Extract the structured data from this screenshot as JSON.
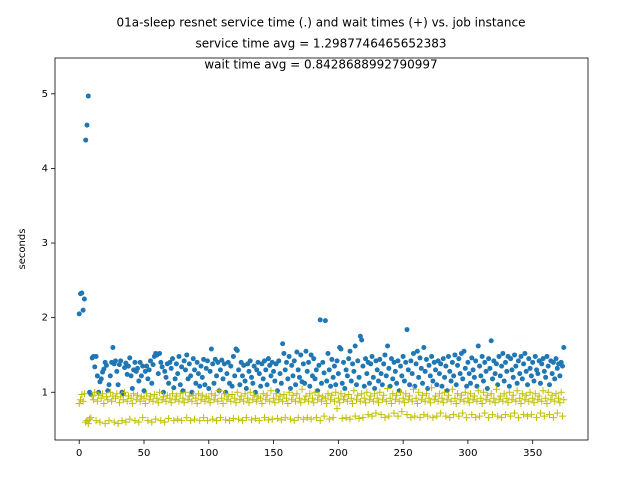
{
  "chart_data": {
    "type": "scatter",
    "title": [
      "01a-sleep resnet service time (.) and wait times (+) vs. job instance",
      "service time avg = 1.2987746465652383",
      "wait time avg = 0.8428688992790997"
    ],
    "ylabel": "seconds",
    "xlim": [
      -18.7,
      392.7
    ],
    "ylim": [
      0.36,
      5.48
    ],
    "xticks": [
      0,
      50,
      100,
      150,
      200,
      250,
      300,
      350
    ],
    "yticks": [
      1,
      2,
      3,
      4,
      5
    ],
    "x": [
      0,
      1,
      2,
      3,
      4,
      5,
      6,
      7,
      8,
      9,
      10,
      11,
      12,
      13,
      14,
      15,
      16,
      17,
      18,
      19,
      20,
      21,
      22,
      23,
      24,
      25,
      26,
      27,
      28,
      29,
      30,
      31,
      32,
      33,
      34,
      35,
      36,
      37,
      38,
      39,
      40,
      41,
      42,
      43,
      44,
      45,
      46,
      47,
      48,
      49,
      50,
      51,
      52,
      53,
      54,
      55,
      56,
      57,
      58,
      59,
      60,
      61,
      62,
      63,
      64,
      65,
      66,
      67,
      68,
      69,
      70,
      71,
      72,
      73,
      74,
      75,
      76,
      77,
      78,
      79,
      80,
      81,
      82,
      83,
      84,
      85,
      86,
      87,
      88,
      89,
      90,
      91,
      92,
      93,
      94,
      95,
      96,
      97,
      98,
      99,
      100,
      101,
      102,
      103,
      104,
      105,
      106,
      107,
      108,
      109,
      110,
      111,
      112,
      113,
      114,
      115,
      116,
      117,
      118,
      119,
      120,
      121,
      122,
      123,
      124,
      125,
      126,
      127,
      128,
      129,
      130,
      131,
      132,
      133,
      134,
      135,
      136,
      137,
      138,
      139,
      140,
      141,
      142,
      143,
      144,
      145,
      146,
      147,
      148,
      149,
      150,
      151,
      152,
      153,
      154,
      155,
      156,
      157,
      158,
      159,
      160,
      161,
      162,
      163,
      164,
      165,
      166,
      167,
      168,
      169,
      170,
      171,
      172,
      173,
      174,
      175,
      176,
      177,
      178,
      179,
      180,
      181,
      182,
      183,
      184,
      185,
      186,
      187,
      188,
      189,
      190,
      191,
      192,
      193,
      194,
      195,
      196,
      197,
      198,
      199,
      200,
      201,
      202,
      203,
      204,
      205,
      206,
      207,
      208,
      209,
      210,
      211,
      212,
      213,
      214,
      215,
      216,
      217,
      218,
      219,
      220,
      221,
      222,
      223,
      224,
      225,
      226,
      227,
      228,
      229,
      230,
      231,
      232,
      233,
      234,
      235,
      236,
      237,
      238,
      239,
      240,
      241,
      242,
      243,
      244,
      245,
      246,
      247,
      248,
      249,
      250,
      251,
      252,
      253,
      254,
      255,
      256,
      257,
      258,
      259,
      260,
      261,
      262,
      263,
      264,
      265,
      266,
      267,
      268,
      269,
      270,
      271,
      272,
      273,
      274,
      275,
      276,
      277,
      278,
      279,
      280,
      281,
      282,
      283,
      284,
      285,
      286,
      287,
      288,
      289,
      290,
      291,
      292,
      293,
      294,
      295,
      296,
      297,
      298,
      299,
      300,
      301,
      302,
      303,
      304,
      305,
      306,
      307,
      308,
      309,
      310,
      311,
      312,
      313,
      314,
      315,
      316,
      317,
      318,
      319,
      320,
      321,
      322,
      323,
      324,
      325,
      326,
      327,
      328,
      329,
      330,
      331,
      332,
      333,
      334,
      335,
      336,
      337,
      338,
      339,
      340,
      341,
      342,
      343,
      344,
      345,
      346,
      347,
      348,
      349,
      350,
      351,
      352,
      353,
      354,
      355,
      356,
      357,
      358,
      359,
      360,
      361,
      362,
      363,
      364,
      365,
      366,
      367,
      368,
      369,
      370,
      371,
      372,
      373,
      374
    ],
    "series": [
      {
        "color": "#1f77b4",
        "marker": "dot",
        "values": [
          2.05,
          2.32,
          2.33,
          2.1,
          2.25,
          4.38,
          4.58,
          4.97,
          1.0,
          0.97,
          1.46,
          1.48,
          1.34,
          1.48,
          1.22,
          1.0,
          1.14,
          1.18,
          1.27,
          1.31,
          1.4,
          1.36,
          1.02,
          1.1,
          1.22,
          1.4,
          1.6,
          1.38,
          1.42,
          1.28,
          1.1,
          1.37,
          1.42,
          1.0,
          0.98,
          1.33,
          1.39,
          1.24,
          1.35,
          1.46,
          1.22,
          1.05,
          1.3,
          1.4,
          1.28,
          1.32,
          1.15,
          1.4,
          1.22,
          1.35,
          1.02,
          1.28,
          1.35,
          1.18,
          1.3,
          1.42,
          1.12,
          1.37,
          1.48,
          1.52,
          1.5,
          1.25,
          1.52,
          1.4,
          1.34,
          1.0,
          1.28,
          1.2,
          1.38,
          1.12,
          1.4,
          1.32,
          1.45,
          1.06,
          1.18,
          1.38,
          1.25,
          1.48,
          1.1,
          1.34,
          1.02,
          1.42,
          1.3,
          1.5,
          1.18,
          1.38,
          1.22,
          1.0,
          1.45,
          1.3,
          1.12,
          1.4,
          1.25,
          1.08,
          1.35,
          1.2,
          1.44,
          1.1,
          1.32,
          1.42,
          1.05,
          1.28,
          1.58,
          1.38,
          1.12,
          1.44,
          1.22,
          1.4,
          1.02,
          1.3,
          1.43,
          1.18,
          1.38,
          1.0,
          1.25,
          1.4,
          1.12,
          1.35,
          1.08,
          1.48,
          1.22,
          1.58,
          1.56,
          1.3,
          1.1,
          1.4,
          1.22,
          1.36,
          1.15,
          1.05,
          1.38,
          1.28,
          1.42,
          1.2,
          1.12,
          1.35,
          1.0,
          1.3,
          1.4,
          1.25,
          1.08,
          1.38,
          1.18,
          1.42,
          1.3,
          1.1,
          1.45,
          1.36,
          1.22,
          1.4,
          1.28,
          1.15,
          1.38,
          1.02,
          1.42,
          1.25,
          1.12,
          1.65,
          1.52,
          1.3,
          1.4,
          1.18,
          1.48,
          1.05,
          1.36,
          1.22,
          1.42,
          1.1,
          1.54,
          1.3,
          1.2,
          1.5,
          1.14,
          1.38,
          1.12,
          1.55,
          1.28,
          1.4,
          1.08,
          1.5,
          1.22,
          1.45,
          1.18,
          1.3,
          1.02,
          1.36,
          1.97,
          1.12,
          1.4,
          1.26,
          1.96,
          1.15,
          1.52,
          1.3,
          1.08,
          1.44,
          1.2,
          1.35,
          1.1,
          1.42,
          1.25,
          1.6,
          1.58,
          1.12,
          1.4,
          1.05,
          1.3,
          1.22,
          1.45,
          1.55,
          1.15,
          1.38,
          1.28,
          1.62,
          1.1,
          1.42,
          1.2,
          1.75,
          1.7,
          1.35,
          1.08,
          1.45,
          1.25,
          1.4,
          1.12,
          1.38,
          1.48,
          1.2,
          1.05,
          1.42,
          1.3,
          1.15,
          1.44,
          1.25,
          1.1,
          1.38,
          1.5,
          1.22,
          1.62,
          1.32,
          1.08,
          1.45,
          1.18,
          1.4,
          1.28,
          1.12,
          1.42,
          1.02,
          1.35,
          1.22,
          1.48,
          1.15,
          1.4,
          1.84,
          1.3,
          1.1,
          1.42,
          1.25,
          1.52,
          1.08,
          1.38,
          1.55,
          1.2,
          1.46,
          1.32,
          1.12,
          1.6,
          1.28,
          1.44,
          1.05,
          1.36,
          1.22,
          1.48,
          1.15,
          1.4,
          1.3,
          1.1,
          1.42,
          1.25,
          1.38,
          1.08,
          1.45,
          1.2,
          1.35,
          1.02,
          1.48,
          1.28,
          1.15,
          1.4,
          1.22,
          1.5,
          1.1,
          1.36,
          1.45,
          1.25,
          1.52,
          1.18,
          1.55,
          1.32,
          1.08,
          1.4,
          1.25,
          1.12,
          1.46,
          1.3,
          1.2,
          1.42,
          1.08,
          1.62,
          1.35,
          1.22,
          1.48,
          1.15,
          1.4,
          1.28,
          1.05,
          1.45,
          1.32,
          1.69,
          1.18,
          1.42,
          1.25,
          1.38,
          1.1,
          1.48,
          1.22,
          1.35,
          1.52,
          1.15,
          1.4,
          1.28,
          1.48,
          1.08,
          1.45,
          1.3,
          1.2,
          1.5,
          1.35,
          1.12,
          1.42,
          1.25,
          1.48,
          1.18,
          1.38,
          1.52,
          1.28,
          1.1,
          1.45,
          1.32,
          1.22,
          1.4,
          1.15,
          1.48,
          1.3,
          1.25,
          1.42,
          1.12,
          1.38,
          1.45,
          1.28,
          1.2,
          1.48,
          1.35,
          1.1,
          1.42,
          1.25,
          1.4,
          1.18,
          1.45,
          1.32,
          1.38,
          1.22,
          1.4,
          1.35,
          1.6
        ]
      },
      {
        "color": "#bfbf00",
        "marker": "plus",
        "values": [
          0.85,
          0.9,
          0.97,
          0.88,
          0.98,
          0.6,
          0.62,
          0.58,
          0.64,
          0.66,
          0.95,
          0.9,
          1.0,
          0.62,
          0.88,
          0.96,
          0.6,
          0.92,
          0.98,
          0.85,
          0.58,
          0.94,
          0.9,
          0.62,
          1.0,
          0.88,
          0.95,
          0.6,
          0.92,
          0.98,
          0.58,
          0.86,
          0.94,
          0.62,
          0.9,
          1.0,
          0.6,
          0.88,
          0.95,
          0.64,
          0.92,
          0.85,
          0.98,
          0.62,
          0.9,
          0.96,
          0.6,
          0.88,
          0.94,
          0.66,
          0.92,
          0.85,
          0.98,
          0.62,
          0.9,
          0.95,
          0.6,
          0.88,
          0.97,
          0.64,
          0.92,
          0.86,
          1.0,
          0.62,
          0.9,
          0.94,
          0.6,
          0.88,
          0.96,
          0.65,
          0.92,
          0.86,
          0.98,
          0.62,
          0.9,
          0.95,
          0.64,
          0.88,
          0.98,
          0.62,
          0.92,
          0.86,
          1.0,
          0.66,
          0.9,
          0.95,
          0.62,
          0.88,
          0.96,
          0.64,
          0.92,
          0.85,
          0.98,
          0.62,
          0.9,
          0.96,
          0.66,
          0.88,
          0.94,
          0.62,
          0.92,
          0.86,
          0.98,
          0.64,
          0.9,
          0.96,
          0.62,
          0.88,
          1.02,
          0.66,
          0.92,
          0.85,
          0.98,
          0.63,
          0.9,
          0.95,
          0.62,
          0.88,
          0.97,
          0.65,
          0.92,
          0.86,
          1.0,
          0.64,
          0.9,
          0.95,
          0.62,
          0.88,
          0.98,
          0.66,
          0.92,
          0.86,
          1.0,
          0.63,
          0.9,
          0.96,
          0.65,
          0.88,
          0.94,
          0.62,
          0.92,
          0.85,
          0.98,
          0.66,
          0.9,
          0.96,
          0.63,
          0.88,
          1.02,
          0.64,
          0.92,
          0.86,
          0.98,
          0.65,
          0.9,
          0.95,
          0.63,
          0.88,
          0.97,
          0.66,
          0.92,
          0.85,
          1.0,
          0.64,
          0.9,
          0.96,
          0.62,
          0.88,
          0.98,
          0.66,
          0.92,
          0.86,
          1.04,
          0.64,
          0.9,
          0.95,
          0.66,
          0.88,
          0.98,
          0.64,
          0.92,
          0.86,
          1.0,
          0.66,
          0.9,
          0.96,
          0.62,
          0.88,
          0.94,
          0.68,
          0.92,
          0.85,
          0.98,
          0.64,
          0.9,
          0.96,
          0.66,
          0.88,
          1.0,
          0.78,
          0.92,
          0.86,
          0.98,
          0.65,
          0.9,
          0.95,
          0.66,
          0.88,
          0.97,
          0.64,
          0.92,
          0.85,
          1.02,
          0.68,
          0.9,
          0.96,
          0.65,
          0.88,
          0.98,
          0.66,
          0.92,
          0.86,
          1.0,
          0.7,
          0.9,
          0.95,
          0.68,
          0.88,
          0.98,
          0.72,
          0.92,
          0.86,
          1.0,
          0.7,
          0.9,
          0.96,
          0.66,
          0.88,
          1.05,
          0.68,
          0.92,
          0.85,
          0.98,
          0.72,
          0.9,
          0.96,
          0.68,
          0.88,
          1.0,
          0.74,
          0.92,
          0.86,
          0.98,
          0.7,
          0.9,
          0.95,
          0.66,
          0.88,
          1.04,
          0.68,
          0.92,
          0.85,
          1.0,
          0.66,
          0.9,
          0.96,
          0.7,
          0.88,
          0.98,
          0.68,
          0.92,
          0.86,
          1.06,
          0.66,
          0.9,
          0.95,
          0.68,
          0.88,
          0.98,
          0.72,
          0.92,
          0.86,
          1.0,
          0.68,
          0.9,
          0.96,
          0.66,
          0.88,
          1.04,
          0.7,
          0.92,
          0.85,
          0.98,
          0.68,
          0.9,
          0.96,
          0.72,
          0.88,
          1.0,
          0.66,
          0.92,
          0.86,
          0.98,
          0.7,
          0.9,
          0.95,
          0.66,
          0.88,
          1.02,
          0.68,
          0.92,
          0.85,
          1.0,
          0.72,
          0.9,
          0.96,
          0.66,
          0.88,
          0.98,
          0.7,
          0.92,
          0.86,
          1.04,
          0.68,
          0.9,
          0.95,
          0.66,
          0.88,
          0.98,
          0.7,
          0.92,
          0.86,
          1.0,
          0.68,
          0.9,
          0.96,
          0.72,
          0.88,
          1.02,
          0.66,
          0.92,
          0.85,
          0.98,
          0.7,
          0.9,
          0.96,
          0.68,
          0.88,
          1.0,
          0.7,
          0.92,
          0.86,
          0.98,
          0.66,
          0.9,
          0.95,
          0.72,
          0.88,
          1.02,
          0.68,
          0.92,
          0.85,
          1.0,
          0.7,
          0.9,
          0.96,
          0.66,
          0.88,
          0.98,
          0.72,
          0.92,
          0.86,
          1.0,
          0.68,
          0.9
        ]
      }
    ]
  }
}
